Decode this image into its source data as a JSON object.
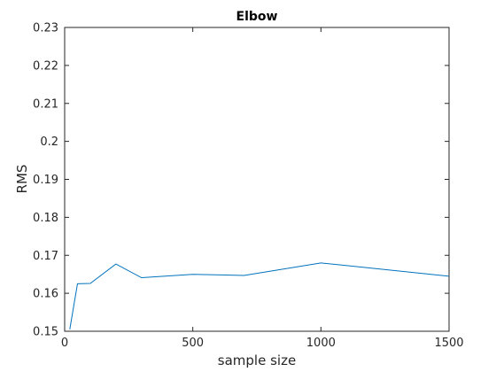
{
  "chart_data": {
    "type": "line",
    "title": "Elbow",
    "xlabel": "sample size",
    "ylabel": "RMS",
    "xlim": [
      0,
      1500
    ],
    "ylim": [
      0.15,
      0.23
    ],
    "xticks": [
      0,
      500,
      1000,
      1500
    ],
    "xtick_labels": [
      "0",
      "500",
      "1000",
      "1500"
    ],
    "yticks": [
      0.15,
      0.16,
      0.17,
      0.18,
      0.19,
      0.2,
      0.21,
      0.22,
      0.23
    ],
    "ytick_labels": [
      "0.15",
      "0.16",
      "0.17",
      "0.18",
      "0.19",
      "0.2",
      "0.21",
      "0.22",
      "0.23"
    ],
    "grid": false,
    "series": [
      {
        "color": "#0072bd",
        "x": [
          20,
          50,
          100,
          200,
          300,
          500,
          700,
          1000,
          1500
        ],
        "y": [
          0.1505,
          0.1625,
          0.1626,
          0.1677,
          0.1641,
          0.165,
          0.1647,
          0.168,
          0.1645
        ]
      }
    ]
  }
}
